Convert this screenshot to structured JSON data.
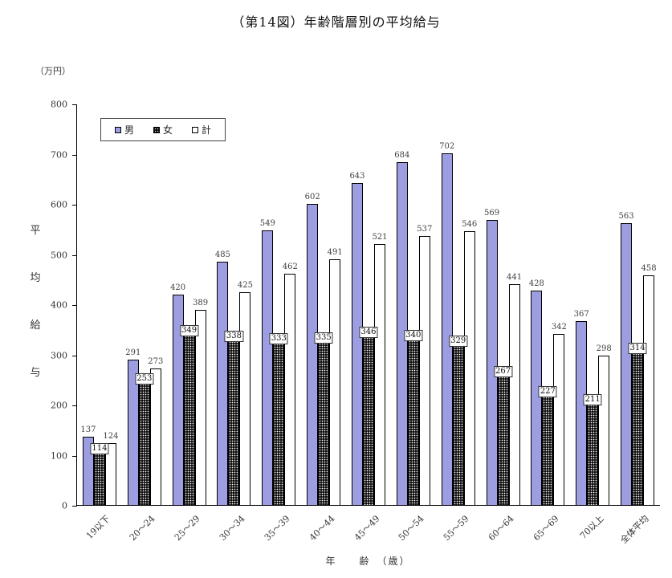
{
  "title": "（第14図）年齢階層別の平均給与",
  "y_unit": "（万円）",
  "y_axis_chars": [
    "平",
    "均",
    "給",
    "与"
  ],
  "x_axis_title": "年　　齢　（歳）",
  "legend": {
    "items": [
      {
        "label": "男",
        "color": "#9d9de1"
      },
      {
        "label": "女",
        "color": "#101010"
      },
      {
        "label": "計",
        "color": "#ffffff"
      }
    ]
  },
  "colors": {
    "men_bar": "#9d9de1",
    "women_bar": "#101010",
    "total_bar": "#ffffff",
    "axis": "#000000",
    "label_text": "#404040"
  },
  "chart_data": {
    "type": "bar",
    "title": "（第14図）年齢階層別の平均給与",
    "xlabel": "年齢（歳）",
    "ylabel": "平均給与（万円）",
    "categories": [
      "19以下",
      "20〜24",
      "25〜29",
      "30〜34",
      "35〜39",
      "40〜44",
      "45〜49",
      "50〜54",
      "55〜59",
      "60〜64",
      "65〜69",
      "70以上",
      "全体平均"
    ],
    "series": [
      {
        "name": "男",
        "values": [
          137,
          291,
          420,
          485,
          549,
          602,
          643,
          684,
          702,
          569,
          428,
          367,
          563
        ]
      },
      {
        "name": "女",
        "values": [
          114,
          253,
          349,
          338,
          333,
          335,
          346,
          340,
          329,
          267,
          227,
          211,
          314
        ]
      },
      {
        "name": "計",
        "values": [
          124,
          273,
          389,
          425,
          462,
          491,
          521,
          537,
          546,
          441,
          342,
          298,
          458
        ]
      }
    ],
    "ylim": [
      0,
      800
    ],
    "yticks": [
      0,
      100,
      200,
      300,
      400,
      500,
      600,
      700,
      800
    ],
    "grid": false,
    "legend_position": "top-left",
    "bar_labels_shown": true
  }
}
